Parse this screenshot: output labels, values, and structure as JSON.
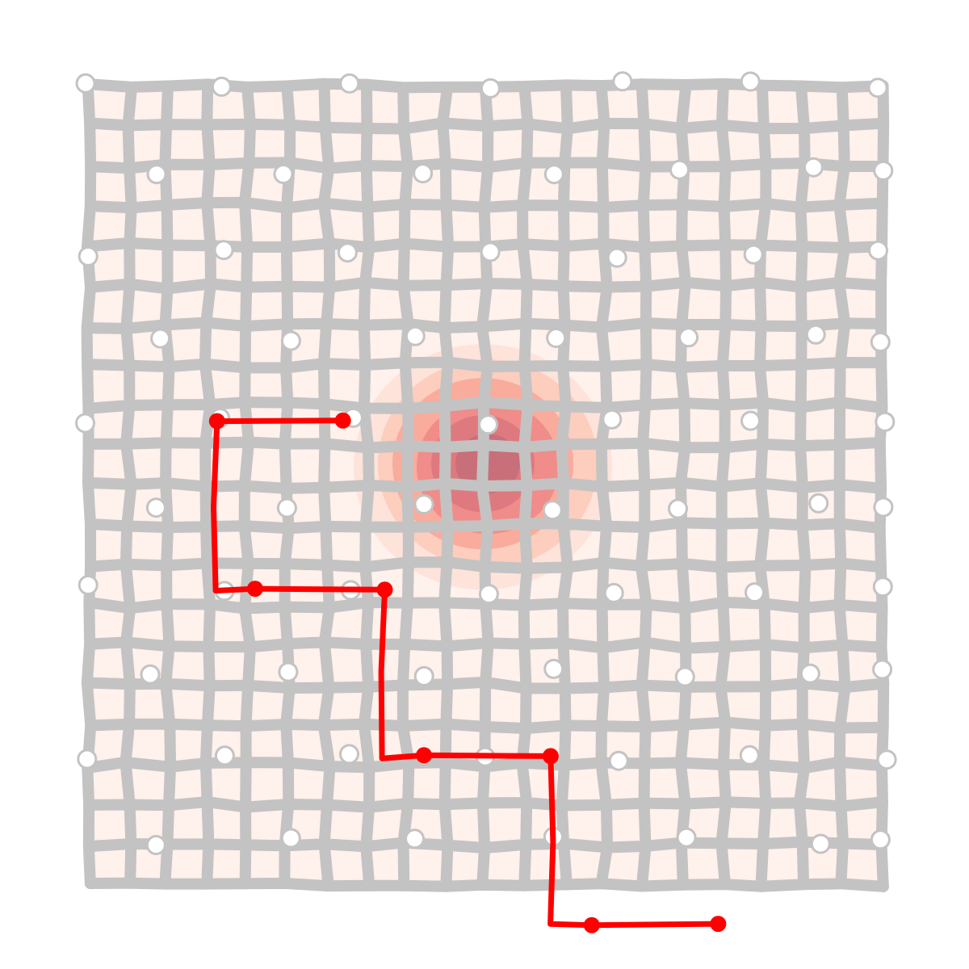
{
  "title": "",
  "colors": {
    "background": "#ffffff",
    "cell_fill": "#fff1ec",
    "grid_line": "#c3c3c3",
    "node_fill": "#ffffff",
    "node_stroke": "#c3c3c3",
    "path": "#ff0000",
    "heat_levels": [
      "#fde0d6",
      "#fcc7b7",
      "#f8a394",
      "#ee8585",
      "#d9767d",
      "#c36d78"
    ]
  },
  "grid": {
    "rows": 20,
    "cols": 20,
    "node_rows": 10,
    "node_cols": 7
  },
  "heatmap": {
    "center": {
      "col": 10,
      "row": 9.5
    },
    "levels": 6
  },
  "path": {
    "nodes": [
      {
        "col": 6,
        "row": 4
      },
      {
        "col": 3,
        "row": 4
      },
      {
        "col": 3,
        "row": 5
      },
      {
        "col": 3,
        "row": 6
      },
      {
        "col": 4,
        "row": 6
      },
      {
        "col": 7,
        "row": 6
      },
      {
        "col": 7,
        "row": 7
      },
      {
        "col": 7,
        "row": 8
      },
      {
        "col": 8,
        "row": 8
      },
      {
        "col": 11,
        "row": 8
      },
      {
        "col": 11,
        "row": 9
      },
      {
        "col": 11,
        "row": 10
      },
      {
        "col": 12,
        "row": 10
      },
      {
        "col": 15,
        "row": 10
      }
    ],
    "marker_indices": [
      0,
      1,
      4,
      5,
      8,
      9,
      12,
      13
    ]
  }
}
